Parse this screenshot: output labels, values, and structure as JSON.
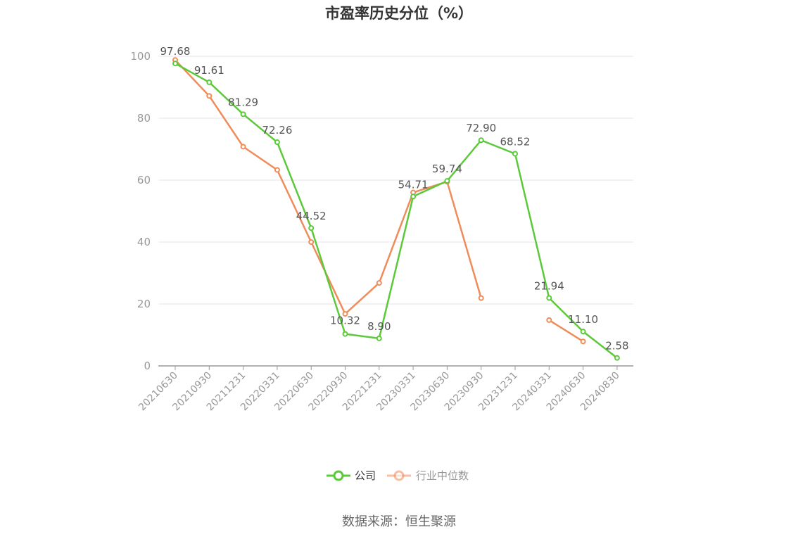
{
  "chart_data": {
    "type": "line",
    "title": "市盈率历史分位（%）",
    "categories": [
      "20210630",
      "20210930",
      "20211231",
      "20220331",
      "20220630",
      "20220930",
      "20221231",
      "20230331",
      "20230630",
      "20230930",
      "20231231",
      "20240331",
      "20240630",
      "20240830"
    ],
    "ylim": [
      0,
      100
    ],
    "yticks": [
      0,
      20,
      40,
      60,
      80,
      100
    ],
    "grid": true,
    "legend_position": "bottom",
    "series": [
      {
        "name": "公司",
        "color": "#5cc93a",
        "values": [
          97.68,
          91.61,
          81.29,
          72.26,
          44.52,
          10.32,
          8.9,
          54.71,
          59.74,
          72.9,
          68.52,
          21.94,
          11.1,
          2.58
        ],
        "labels": [
          "97.68",
          "91.61",
          "81.29",
          "72.26",
          "44.52",
          "10.32",
          "8.90",
          "54.71",
          "59.74",
          "72.90",
          "68.52",
          "21.94",
          "11.10",
          "2.58"
        ]
      },
      {
        "name": "行业中位数",
        "color": "#ef8c5a",
        "values": [
          98.8,
          87.2,
          70.8,
          63.3,
          40.0,
          16.8,
          26.8,
          56.0,
          59.5,
          21.9,
          null,
          14.8,
          7.9,
          null
        ]
      }
    ]
  },
  "source": "数据来源：恒生聚源"
}
